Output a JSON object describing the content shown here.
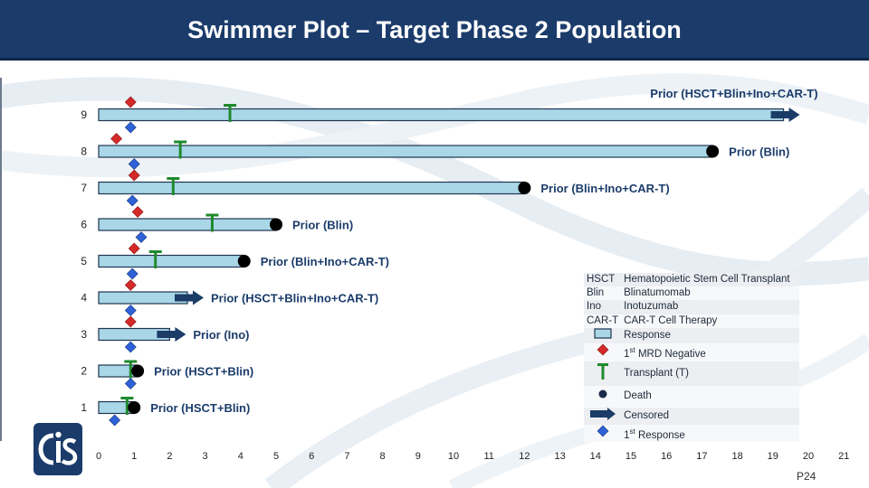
{
  "title": "Swimmer Plot – Target Phase 2 Population",
  "page_number": "P24",
  "colors": {
    "header": "#1b3c6b",
    "bar_fill": "#a9d7e8",
    "bar_stroke": "#1f3550",
    "transplant": "#1f8a2e",
    "mrd": "#d42a2a",
    "response": "#2f62d8",
    "death": "#000000",
    "censored": "#1a3c66"
  },
  "legend": {
    "abbreviations": [
      {
        "abbr": "HSCT",
        "desc": "Hematopoietic Stem Cell Transplant"
      },
      {
        "abbr": "Blin",
        "desc": "Blinatumomab"
      },
      {
        "abbr": "Ino",
        "desc": "Inotuzumab"
      },
      {
        "abbr": "CAR-T",
        "desc": "CAR-T Cell Therapy"
      }
    ],
    "symbols": {
      "response": "Response",
      "mrd_prefix": "1",
      "mrd_sup": "st",
      "mrd_suffix": " MRD Negative",
      "transplant": "Transplant (T)",
      "death": "Death",
      "censored": "Censored",
      "first_response_prefix": "1",
      "first_response_sup": "st",
      "first_response_suffix": " Response"
    }
  },
  "chart_data": {
    "type": "swimmer",
    "title": "Swimmer Plot – Target Phase 2 Population",
    "xlim": [
      0,
      21
    ],
    "x_ticks": [
      0,
      1,
      2,
      3,
      4,
      5,
      6,
      7,
      8,
      9,
      10,
      11,
      12,
      13,
      14,
      15,
      16,
      17,
      18,
      19,
      20,
      21
    ],
    "subjects": [
      {
        "id": "1",
        "duration": 1.0,
        "end": "death",
        "label": "Prior (HSCT+Blin)",
        "transplant": 0.8,
        "mrd": null,
        "first_response": 0.45
      },
      {
        "id": "2",
        "duration": 1.1,
        "end": "death",
        "label": "Prior (HSCT+Blin)",
        "transplant": 0.9,
        "mrd": null,
        "first_response": 0.9
      },
      {
        "id": "3",
        "duration": 2.0,
        "end": "censored",
        "label": "Prior (Ino)",
        "transplant": null,
        "mrd": 0.9,
        "first_response": 0.9
      },
      {
        "id": "4",
        "duration": 2.5,
        "end": "censored",
        "label": "Prior (HSCT+Blin+Ino+CAR-T)",
        "transplant": null,
        "mrd": 0.9,
        "first_response": 0.9
      },
      {
        "id": "5",
        "duration": 4.1,
        "end": "death",
        "label": "Prior (Blin+Ino+CAR-T)",
        "transplant": 1.6,
        "mrd": 1.0,
        "first_response": 0.95
      },
      {
        "id": "6",
        "duration": 5.0,
        "end": "death",
        "label": "Prior (Blin)",
        "transplant": 3.2,
        "mrd": 1.1,
        "first_response": 1.2
      },
      {
        "id": "7",
        "duration": 12.0,
        "end": "death",
        "label": "Prior (Blin+Ino+CAR-T)",
        "transplant": 2.1,
        "mrd": 1.0,
        "first_response": 0.95
      },
      {
        "id": "8",
        "duration": 17.3,
        "end": "death",
        "label": "Prior (Blin)",
        "transplant": 2.3,
        "mrd": 0.5,
        "first_response": 1.0
      },
      {
        "id": "9",
        "duration": 19.3,
        "end": "censored",
        "label": "Prior (HSCT+Blin+Ino+CAR-T)",
        "transplant": 3.7,
        "mrd": 0.9,
        "first_response": 0.9
      }
    ]
  }
}
